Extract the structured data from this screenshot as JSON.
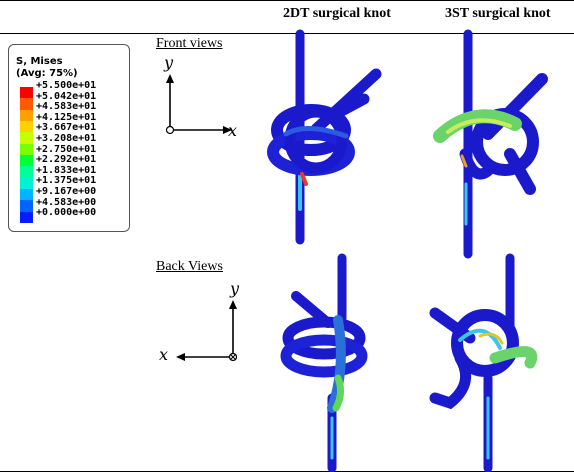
{
  "header": {
    "col_2dt": "2DT surgical knot",
    "col_3st": "3ST surgical knot"
  },
  "rows": {
    "front_label": "Front views",
    "back_label": "Back Views"
  },
  "legend": {
    "title_line1": "S, Mises",
    "title_line2": "(Avg: 75%)",
    "values": [
      "+5.500e+01",
      "+5.042e+01",
      "+4.583e+01",
      "+4.125e+01",
      "+3.667e+01",
      "+3.208e+01",
      "+2.750e+01",
      "+2.292e+01",
      "+1.833e+01",
      "+1.375e+01",
      "+9.167e+00",
      "+4.583e+00",
      "+0.000e+00"
    ],
    "colors": [
      "#ff0000",
      "#ff5a00",
      "#ffa000",
      "#ffd200",
      "#c8ff00",
      "#78ff00",
      "#00ff3c",
      "#00ff96",
      "#00f0dc",
      "#00b4ff",
      "#0064ff",
      "#001eff"
    ]
  },
  "axes": {
    "front_y": "y",
    "front_x": "x",
    "back_y": "y",
    "back_x": "x"
  },
  "colors": {
    "knot_blue": "#1a1acc",
    "suture_blue": "#2236d8",
    "stress_green": "#5fd85a",
    "stress_cyan": "#3bc6e8",
    "stress_yellow": "#d8e83a",
    "stress_red": "#e83a2a"
  }
}
